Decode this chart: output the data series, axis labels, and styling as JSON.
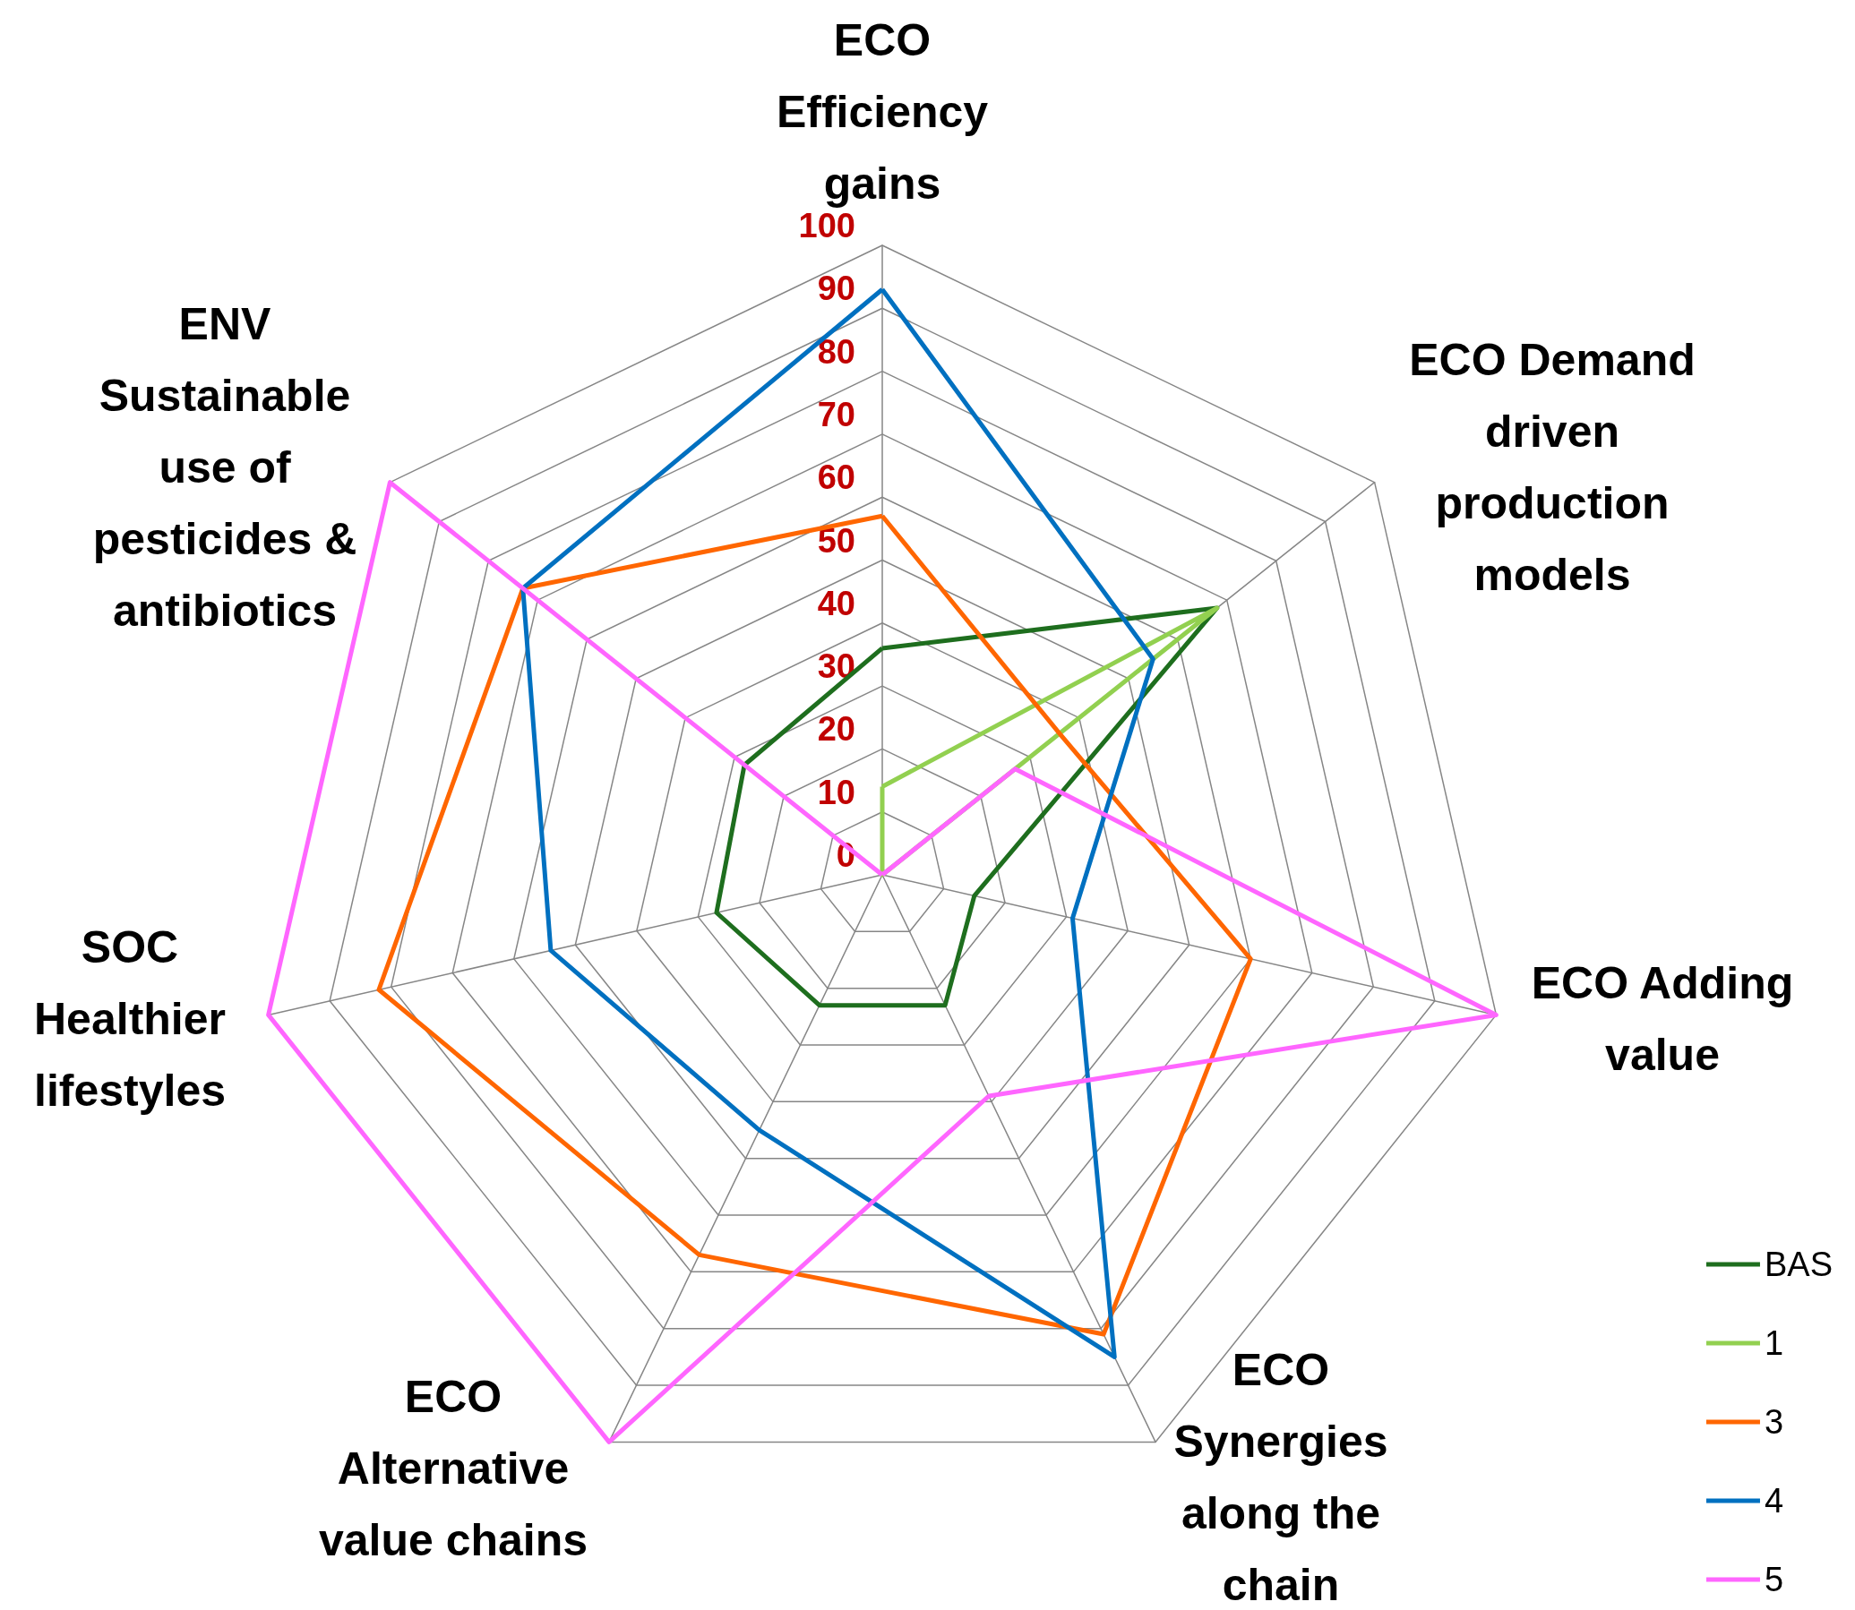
{
  "chart_data": {
    "type": "radar",
    "categories": [
      "ECO Efficiency gains",
      "ECO Demand driven production models",
      "ECO Adding value",
      "ECO Synergies along the chain",
      "ECO Alternative value chains",
      "SOC Healthier lifestyles",
      "ENV Sustainable use of pesticides & antibiotics"
    ],
    "series": [
      {
        "name": "BAS",
        "color": "#1e6e1e",
        "values": [
          36,
          68,
          15,
          23,
          23,
          27,
          28
        ]
      },
      {
        "name": "1",
        "color": "#92d050",
        "values": [
          14,
          68,
          0,
          0,
          0,
          0,
          0
        ]
      },
      {
        "name": "3",
        "color": "#ff6600",
        "values": [
          57,
          36,
          60,
          81,
          67,
          82,
          73
        ]
      },
      {
        "name": "4",
        "color": "#0070c0",
        "values": [
          93,
          55,
          31,
          85,
          45,
          54,
          73
        ]
      },
      {
        "name": "5",
        "color": "#ff66ff",
        "values": [
          0,
          27,
          100,
          39,
          100,
          100,
          100
        ]
      }
    ],
    "ylim": [
      0,
      100
    ],
    "yticks": [
      0,
      10,
      20,
      30,
      40,
      50,
      60,
      70,
      80,
      90,
      100
    ],
    "grid": true,
    "legend": "bottom right",
    "marker": "none",
    "line_style": "solid"
  }
}
